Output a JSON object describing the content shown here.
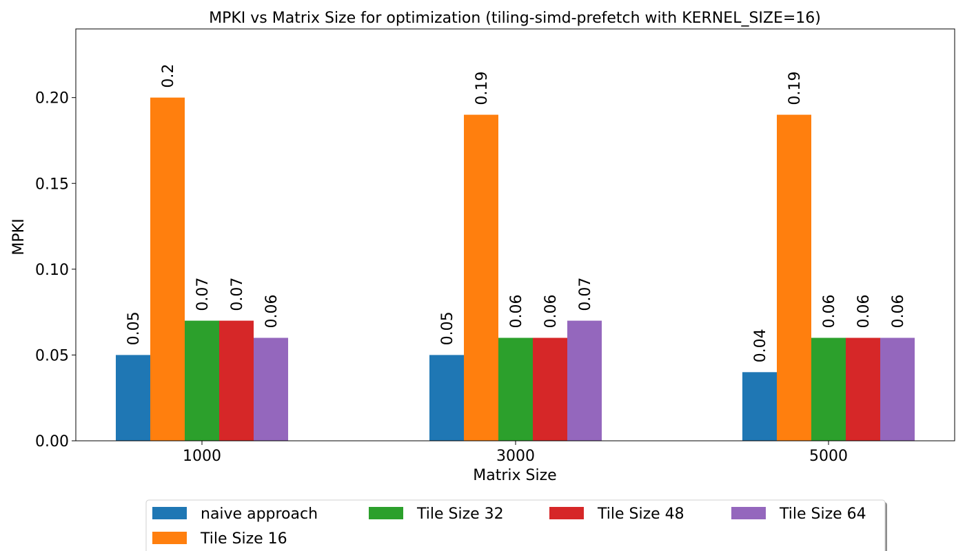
{
  "chart_data": {
    "type": "bar",
    "title": "MPKI vs Matrix Size for optimization (tiling-simd-prefetch with KERNEL_SIZE=16)",
    "xlabel": "Matrix Size",
    "ylabel": "MPKI",
    "categories": [
      "1000",
      "3000",
      "5000"
    ],
    "ylim": [
      0,
      0.24
    ],
    "yticks": [
      0.0,
      0.05,
      0.1,
      0.15,
      0.2
    ],
    "ytick_labels": [
      "0.00",
      "0.05",
      "0.10",
      "0.15",
      "0.20"
    ],
    "grid": false,
    "legend_position": "bottom",
    "series": [
      {
        "name": "naive approach",
        "color": "#1f77b4",
        "values": [
          0.05,
          0.05,
          0.04
        ],
        "labels": [
          "0.05",
          "0.05",
          "0.04"
        ]
      },
      {
        "name": "Tile Size 16",
        "color": "#ff7f0e",
        "values": [
          0.2,
          0.19,
          0.19
        ],
        "labels": [
          "0.2",
          "0.19",
          "0.19"
        ]
      },
      {
        "name": "Tile Size 32",
        "color": "#2ca02c",
        "values": [
          0.07,
          0.06,
          0.06
        ],
        "labels": [
          "0.07",
          "0.06",
          "0.06"
        ]
      },
      {
        "name": "Tile Size 48",
        "color": "#d62728",
        "values": [
          0.07,
          0.06,
          0.06
        ],
        "labels": [
          "0.07",
          "0.06",
          "0.06"
        ]
      },
      {
        "name": "Tile Size 64",
        "color": "#9467bd",
        "values": [
          0.06,
          0.07,
          0.06
        ],
        "labels": [
          "0.06",
          "0.07",
          "0.06"
        ]
      }
    ]
  }
}
